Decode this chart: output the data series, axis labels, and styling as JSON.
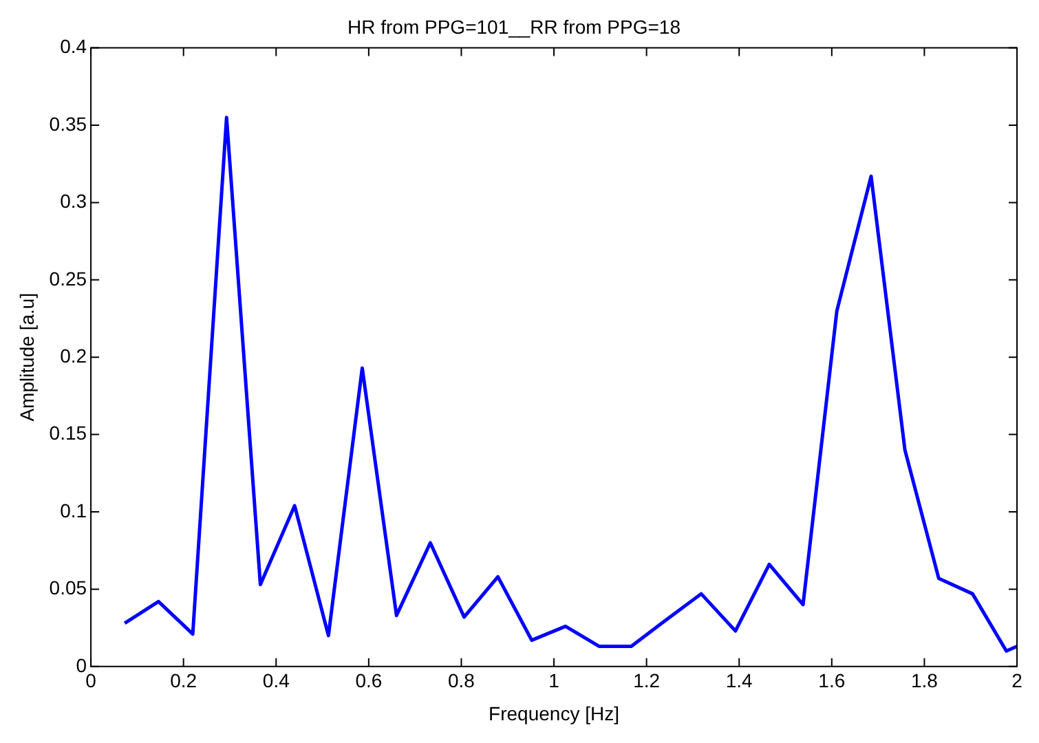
{
  "chart_data": {
    "type": "line",
    "title": "HR from PPG=101__RR from PPG=18",
    "xlabel": "Frequency [Hz]",
    "ylabel": "Amplitude [a.u]",
    "series": [
      {
        "color": "#0000ff",
        "x": [
          0.073,
          0.146,
          0.22,
          0.293,
          0.366,
          0.44,
          0.513,
          0.586,
          0.66,
          0.733,
          0.806,
          0.879,
          0.952,
          1.025,
          1.098,
          1.167,
          1.233,
          1.318,
          1.392,
          1.465,
          1.538,
          1.611,
          1.685,
          1.758,
          1.831,
          1.904,
          1.977,
          2.0
        ],
        "values": [
          0.028,
          0.042,
          0.021,
          0.355,
          0.053,
          0.104,
          0.02,
          0.193,
          0.033,
          0.08,
          0.032,
          0.058,
          0.017,
          0.026,
          0.013,
          0.013,
          0.028,
          0.047,
          0.023,
          0.066,
          0.04,
          0.23,
          0.317,
          0.14,
          0.057,
          0.047,
          0.01,
          0.013
        ]
      }
    ],
    "xlim": [
      0,
      2
    ],
    "xticks": [
      0,
      0.2,
      0.4,
      0.6,
      0.8,
      1,
      1.2,
      1.4,
      1.6,
      1.8,
      2
    ],
    "ylim": [
      0,
      0.4
    ],
    "yticks": [
      0,
      0.05,
      0.1,
      0.15,
      0.2,
      0.25,
      0.3,
      0.35,
      0.4
    ],
    "grid": false,
    "legend": false,
    "marker": "none",
    "line_style": "solid"
  }
}
